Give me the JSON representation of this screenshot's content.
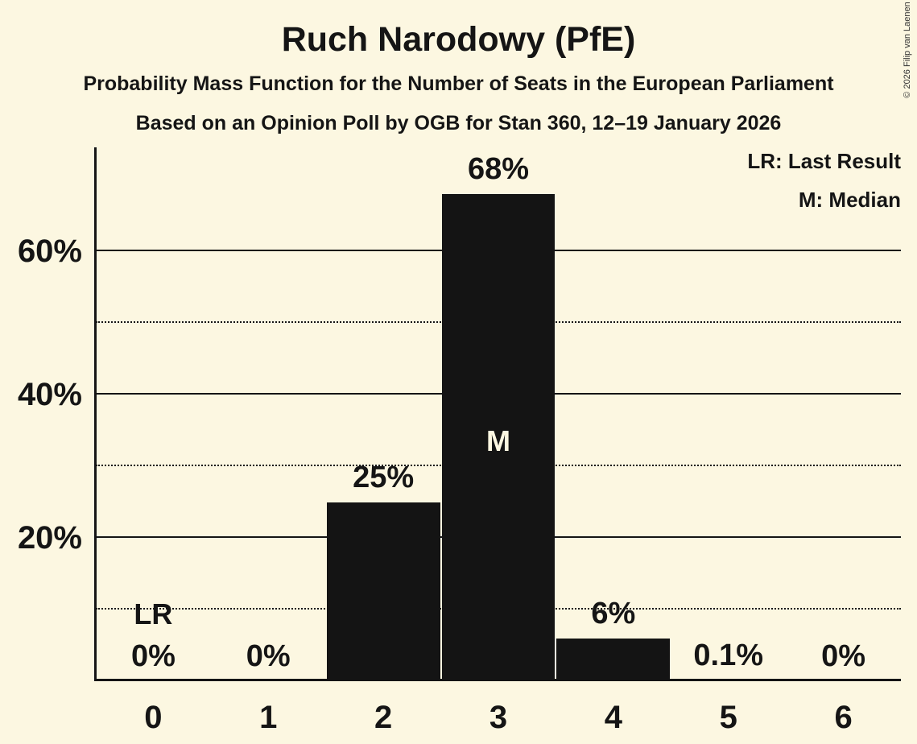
{
  "title": "Ruch Narodowy (PfE)",
  "subtitle": "Probability Mass Function for the Number of Seats in the European Parliament",
  "subtitle2": "Based on an Opinion Poll by OGB for Stan 360, 12–19 January 2026",
  "copyright": "© 2026 Filip van Laenen",
  "legend": {
    "last_result": "LR: Last Result",
    "median": "M: Median"
  },
  "colors": {
    "background": "#fcf7e1",
    "bar": "#141414",
    "text": "#151515"
  },
  "chart_data": {
    "type": "bar",
    "title": "Ruch Narodowy (PfE)",
    "categories": [
      "0",
      "1",
      "2",
      "3",
      "4",
      "5",
      "6"
    ],
    "values": [
      0,
      0,
      25,
      68,
      6,
      0.1,
      0
    ],
    "bar_labels": [
      "0%",
      "0%",
      "25%",
      "68%",
      "6%",
      "0.1%",
      "0%"
    ],
    "ylim": [
      0,
      74.5
    ],
    "ytick_values": [
      20,
      40,
      60
    ],
    "ytick_labels": [
      "20%",
      "40%",
      "60%"
    ],
    "solid_gridlines": [
      20,
      40,
      60
    ],
    "dotted_gridlines": [
      10,
      30,
      50
    ],
    "median_index": 3,
    "median_marker": "M",
    "last_result_index": 0,
    "last_result_marker": "LR",
    "legend_position": "top-right",
    "grid": "horizontal-only"
  }
}
